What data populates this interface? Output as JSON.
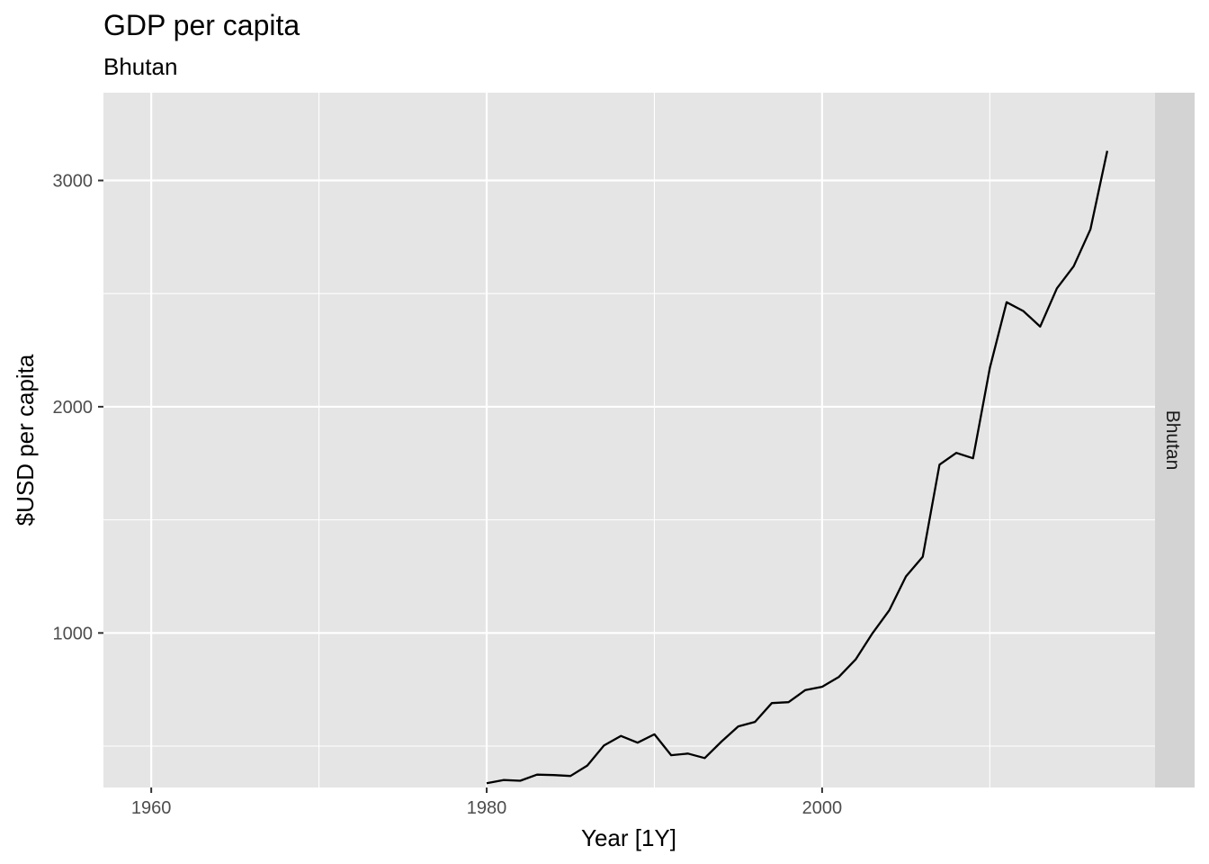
{
  "chart_data": {
    "type": "line",
    "title": "GDP per capita",
    "subtitle": "Bhutan",
    "xlabel": "Year [1Y]",
    "ylabel": "$USD per capita",
    "facet_label": "Bhutan",
    "xlim": [
      1957.15,
      2019.85
    ],
    "ylim": [
      317,
      3388
    ],
    "x_ticks": [
      1960,
      1980,
      2000
    ],
    "x_minor": [
      1970,
      1990,
      2010
    ],
    "y_ticks": [
      1000,
      2000,
      3000
    ],
    "y_minor": [
      1500,
      2500,
      500
    ],
    "x_tick_labels": [
      "1960",
      "1980",
      "2000"
    ],
    "y_tick_labels": [
      "1000",
      "2000",
      "3000"
    ],
    "grid": true,
    "colors": {
      "panel": "#e5e5e5",
      "grid": "#ffffff",
      "line": "#000000",
      "strip": "#d3d3d3"
    },
    "series": [
      {
        "x": [
          1980,
          1981,
          1982,
          1983,
          1984,
          1985,
          1986,
          1987,
          1988,
          1989,
          1990,
          1991,
          1992,
          1993,
          1994,
          1995,
          1996,
          1997,
          1998,
          1999,
          2000,
          2001,
          2002,
          2003,
          2004,
          2005,
          2006,
          2007,
          2008,
          2009,
          2010,
          2011,
          2012,
          2013,
          2014,
          2015,
          2016,
          2017
        ],
        "y": [
          336,
          350,
          347,
          374,
          372,
          368,
          414,
          503,
          545,
          515,
          552,
          460,
          467,
          447,
          520,
          587,
          607,
          690,
          694,
          748,
          762,
          806,
          883,
          998,
          1100,
          1250,
          1337,
          1744,
          1796,
          1772,
          2172,
          2462,
          2423,
          2354,
          2523,
          2621,
          2784,
          3131
        ]
      }
    ]
  }
}
